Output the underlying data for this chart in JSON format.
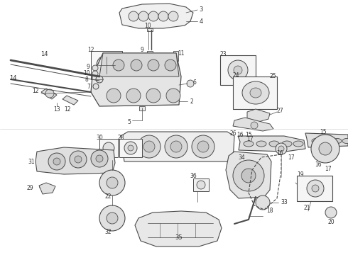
{
  "bg_color": "#ffffff",
  "lc": "#4a4a4a",
  "tc": "#333333",
  "fw": 4.9,
  "fh": 3.6,
  "dpi": 100
}
